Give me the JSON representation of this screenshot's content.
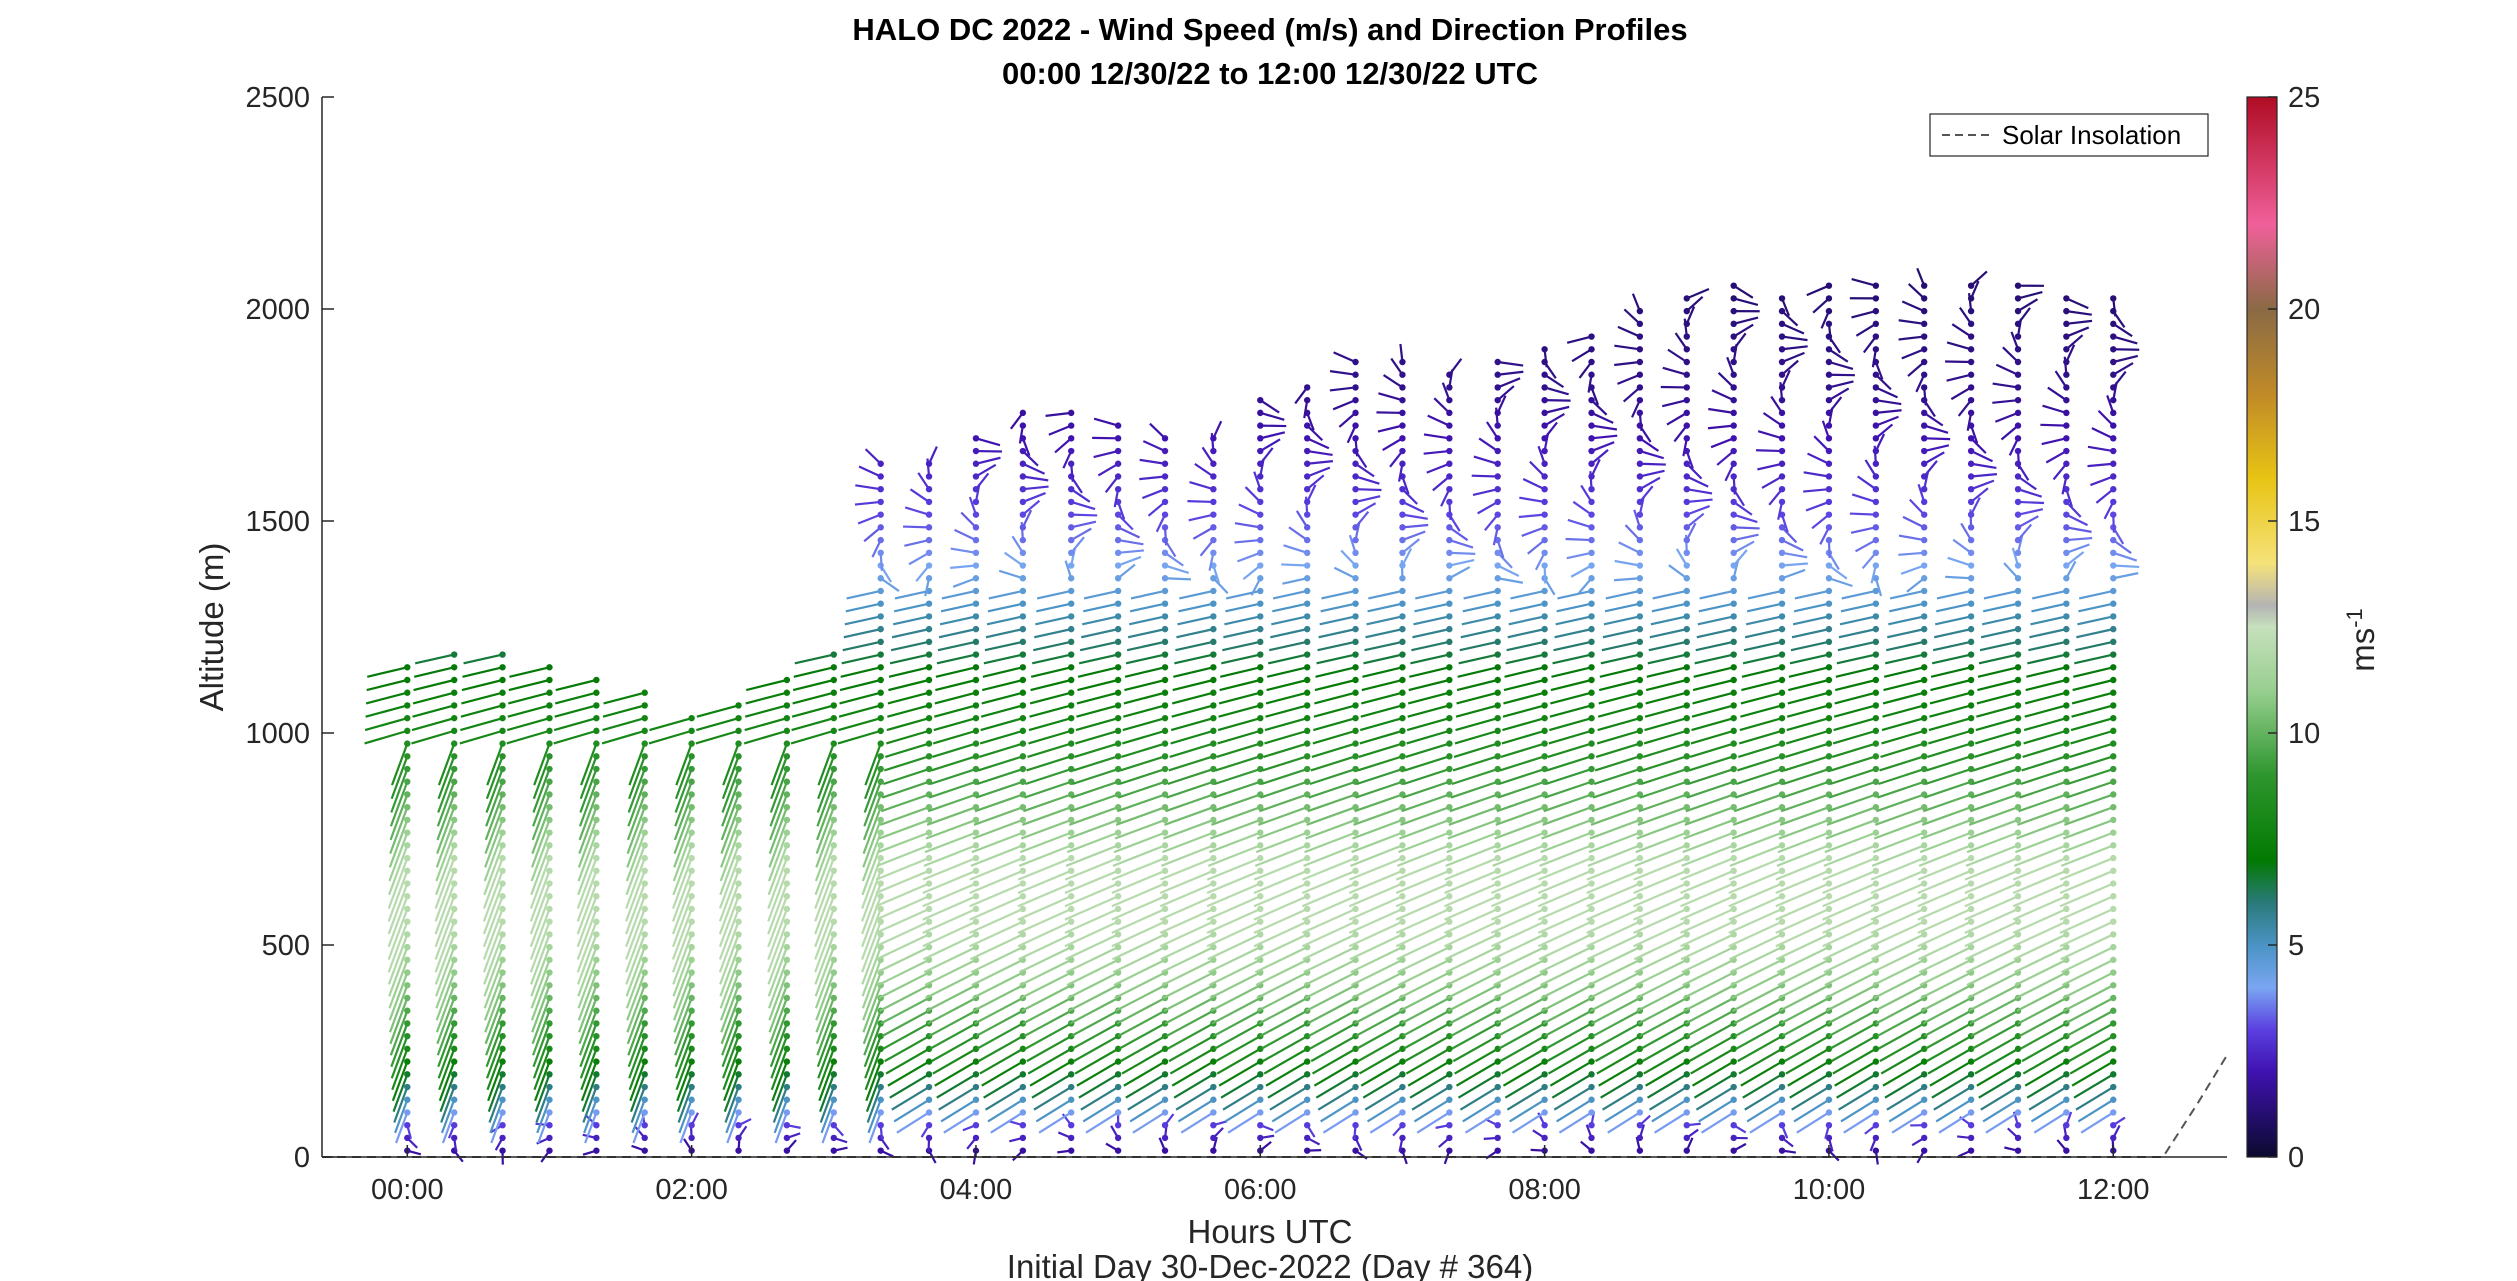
{
  "chart_data": {
    "type": "wind_barb_profile",
    "title": "HALO DC 2022 - Wind Speed (m/s) and Direction Profiles",
    "subtitle": "00:00 12/30/22 to 12:00 12/30/22  UTC",
    "xlabel": "Hours UTC",
    "xlabel2": "Initial Day 30-Dec-2022 (Day # 364)",
    "ylabel": "Altitude (m)",
    "colorbar_label_base": "ms",
    "colorbar_label_exp": "-1",
    "xlim": [
      -0.6,
      12.8
    ],
    "ylim": [
      0,
      2500
    ],
    "xticks": [
      {
        "value": 0,
        "label": "00:00"
      },
      {
        "value": 2,
        "label": "02:00"
      },
      {
        "value": 4,
        "label": "04:00"
      },
      {
        "value": 6,
        "label": "06:00"
      },
      {
        "value": 8,
        "label": "08:00"
      },
      {
        "value": 10,
        "label": "10:00"
      },
      {
        "value": 12,
        "label": "12:00"
      }
    ],
    "yticks": [
      {
        "value": 0,
        "label": "0"
      },
      {
        "value": 500,
        "label": "500"
      },
      {
        "value": 1000,
        "label": "1000"
      },
      {
        "value": 1500,
        "label": "1500"
      },
      {
        "value": 2000,
        "label": "2000"
      },
      {
        "value": 2500,
        "label": "2500"
      }
    ],
    "colorbar_ticks": [
      {
        "value": 0,
        "label": "0"
      },
      {
        "value": 5,
        "label": "5"
      },
      {
        "value": 10,
        "label": "10"
      },
      {
        "value": 15,
        "label": "15"
      },
      {
        "value": 20,
        "label": "20"
      },
      {
        "value": 25,
        "label": "25"
      }
    ],
    "colorbar_range": [
      0,
      25
    ],
    "colormap_stops": [
      {
        "v": 0,
        "c": "#0b0a2e"
      },
      {
        "v": 2,
        "c": "#3f12b0"
      },
      {
        "v": 3,
        "c": "#5a3fe0"
      },
      {
        "v": 4,
        "c": "#7aa6f2"
      },
      {
        "v": 5,
        "c": "#4a93c4"
      },
      {
        "v": 6,
        "c": "#2a7a7a"
      },
      {
        "v": 7,
        "c": "#027a02"
      },
      {
        "v": 9,
        "c": "#2e962e"
      },
      {
        "v": 11,
        "c": "#98cf90"
      },
      {
        "v": 12.5,
        "c": "#c6e0bc"
      },
      {
        "v": 13,
        "c": "#b4b4b4"
      },
      {
        "v": 14,
        "c": "#f5e27a"
      },
      {
        "v": 16,
        "c": "#e8c414"
      },
      {
        "v": 18,
        "c": "#c08a28"
      },
      {
        "v": 20,
        "c": "#8a6a45"
      },
      {
        "v": 22,
        "c": "#f0609a"
      },
      {
        "v": 25,
        "c": "#b00c24"
      }
    ],
    "legend": [
      {
        "label": "Solar Insolation",
        "style": "dashed",
        "color": "#555555",
        "placement": "top-right"
      }
    ],
    "profile_times_h": [
      0,
      0.33,
      0.67,
      1.0,
      1.33,
      1.67,
      2.0,
      2.33,
      2.67,
      3.0,
      3.33,
      3.67,
      4.0,
      4.33,
      4.67,
      5.0,
      5.33,
      5.67,
      6.0,
      6.33,
      6.67,
      7.0,
      7.33,
      7.67,
      8.0,
      8.33,
      8.67,
      9.0,
      9.33,
      9.67,
      10.0,
      10.33,
      10.67,
      11.0,
      11.33,
      11.67,
      12.0
    ],
    "profile_tops_m": [
      1180,
      1210,
      1200,
      1160,
      1150,
      1120,
      1050,
      1080,
      1150,
      1200,
      1660,
      1640,
      1700,
      1780,
      1760,
      1740,
      1720,
      1700,
      1800,
      1830,
      1900,
      1880,
      1860,
      1890,
      1930,
      1960,
      2000,
      2040,
      2080,
      2040,
      2060,
      2070,
      2080,
      2060,
      2080,
      2040,
      2050
    ],
    "range_gate_step_m": 30,
    "wind_vectors_note": "Each profile is a column of arrows from 0 m up to its top; arrow shows direction, color shows speed (m/s) per the colorbar.",
    "speed_profile_m_s": [
      {
        "alt": 0,
        "speed": 1.5
      },
      {
        "alt": 80,
        "speed": 3.0
      },
      {
        "alt": 150,
        "speed": 5.5
      },
      {
        "alt": 250,
        "speed": 8.0
      },
      {
        "alt": 400,
        "speed": 10.5
      },
      {
        "alt": 550,
        "speed": 12.0
      },
      {
        "alt": 700,
        "speed": 12.0
      },
      {
        "alt": 850,
        "speed": 10.0
      },
      {
        "alt": 1000,
        "speed": 8.0
      },
      {
        "alt": 1150,
        "speed": 7.0
      },
      {
        "alt": 1300,
        "speed": 5.0
      },
      {
        "alt": 1450,
        "speed": 3.5
      },
      {
        "alt": 1600,
        "speed": 2.5
      },
      {
        "alt": 1800,
        "speed": 1.5
      },
      {
        "alt": 2100,
        "speed": 1.0
      }
    ],
    "solar_insolation": [
      {
        "x": -0.6,
        "y": 0
      },
      {
        "x": 12.35,
        "y": 0
      },
      {
        "x": 12.6,
        "y": 130
      },
      {
        "x": 12.8,
        "y": 240
      }
    ]
  }
}
